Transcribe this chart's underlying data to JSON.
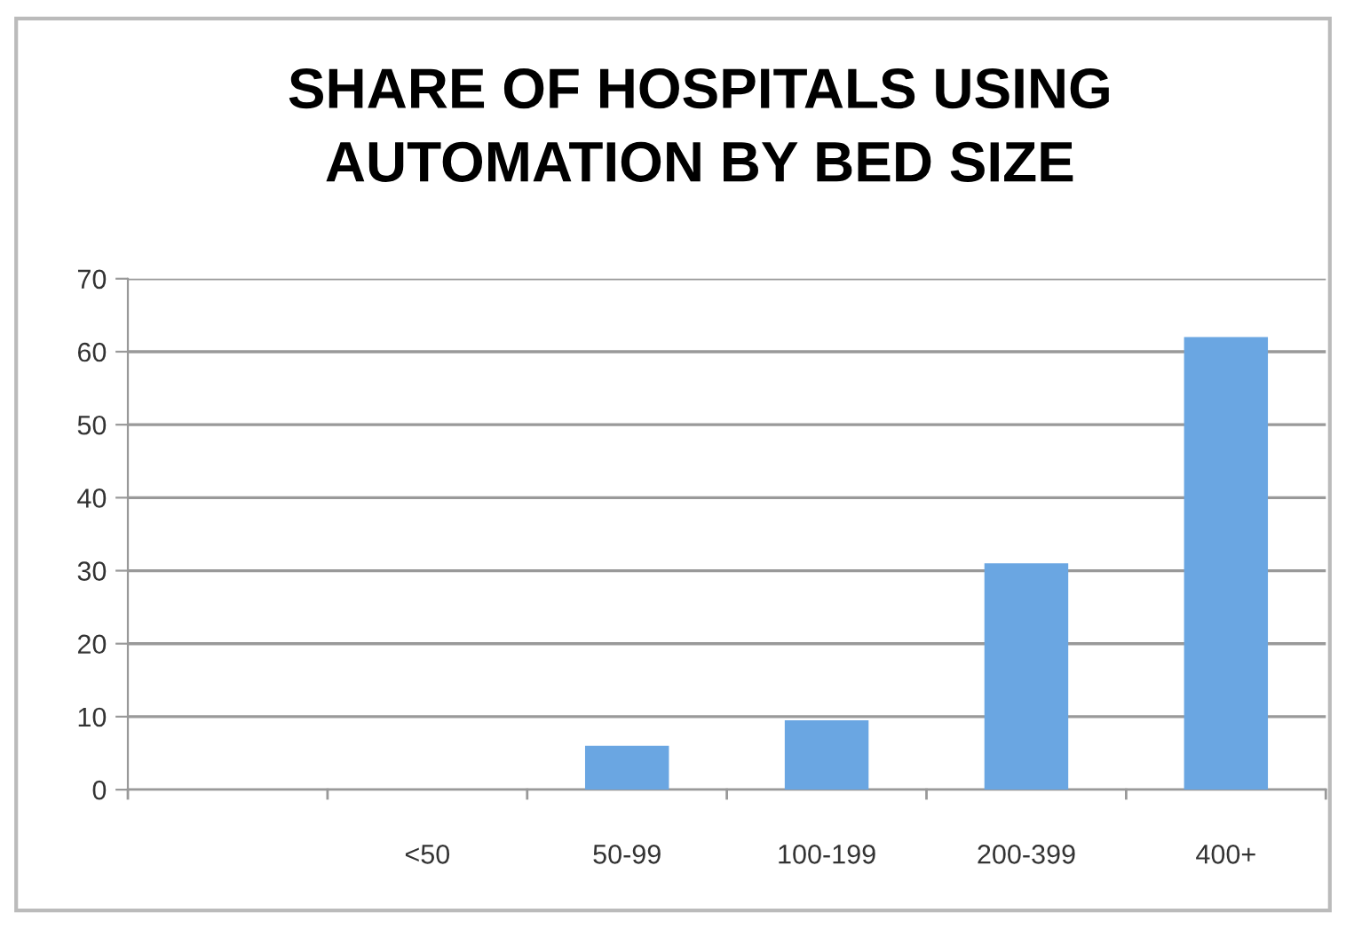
{
  "chart_data": {
    "type": "bar",
    "title": "SHARE OF HOSPITALS USING\nAUTOMATION BY BED SIZE",
    "categories": [
      null,
      "<50",
      "50-99",
      "100-199",
      "200-399",
      "400+"
    ],
    "values": [
      null,
      0,
      6,
      9.5,
      31,
      62
    ],
    "color": "#6aa6e2",
    "ylim": [
      0,
      70
    ],
    "yticks": [
      0,
      10,
      20,
      30,
      40,
      50,
      60,
      70
    ],
    "grid": "y"
  }
}
